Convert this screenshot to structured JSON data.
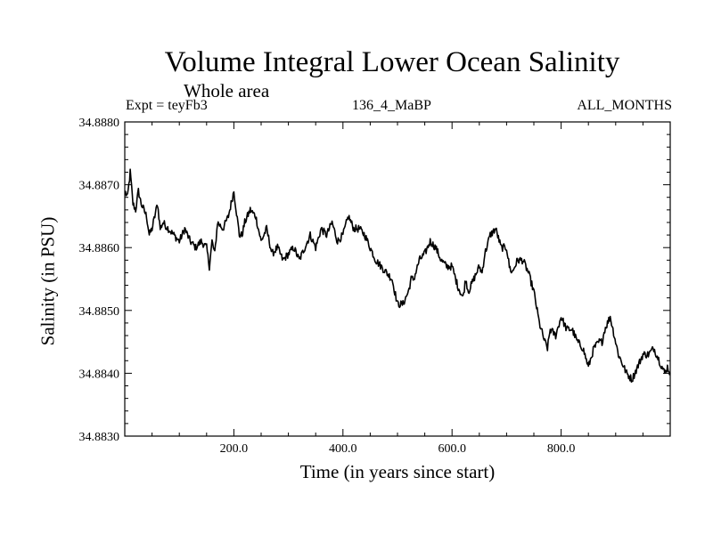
{
  "chart_data": {
    "type": "line",
    "title": "Volume Integral Lower Ocean Salinity",
    "subtitle": "Whole area",
    "experiment_label": "Expt = teyFb3",
    "run_label": "136_4_MaBP",
    "months_label": "ALL_MONTHS",
    "xlabel": "Time (in years since start)",
    "ylabel": "Salinity (in PSU)",
    "xlim": [
      0,
      1000
    ],
    "ylim": [
      34.883,
      34.888
    ],
    "x_ticks": [
      200,
      400,
      600,
      800
    ],
    "x_tick_labels": [
      "200.0",
      "400.0",
      "600.0",
      "800.0"
    ],
    "y_ticks": [
      34.883,
      34.884,
      34.885,
      34.886,
      34.887,
      34.888
    ],
    "y_tick_labels": [
      "34.8830",
      "34.8840",
      "34.8850",
      "34.8860",
      "34.8870",
      "34.8880"
    ],
    "grid": false,
    "series": [
      {
        "name": "salinity",
        "x": [
          0,
          5,
          10,
          15,
          20,
          25,
          30,
          35,
          40,
          45,
          50,
          55,
          60,
          65,
          70,
          80,
          90,
          100,
          110,
          120,
          130,
          140,
          150,
          155,
          160,
          165,
          170,
          180,
          190,
          200,
          210,
          215,
          220,
          230,
          240,
          250,
          260,
          270,
          280,
          290,
          300,
          310,
          320,
          330,
          340,
          350,
          360,
          370,
          380,
          390,
          400,
          410,
          420,
          430,
          440,
          450,
          460,
          470,
          480,
          490,
          500,
          510,
          520,
          525,
          530,
          540,
          550,
          560,
          570,
          580,
          590,
          600,
          610,
          620,
          625,
          630,
          640,
          650,
          655,
          660,
          670,
          680,
          690,
          700,
          705,
          710,
          720,
          730,
          740,
          750,
          760,
          770,
          775,
          780,
          790,
          800,
          810,
          820,
          830,
          840,
          850,
          860,
          870,
          875,
          880,
          890,
          900,
          905,
          910,
          920,
          930,
          940,
          950,
          960,
          970,
          980,
          990,
          995,
          1000
        ],
        "y": [
          34.8869,
          34.8868,
          34.8872,
          34.8867,
          34.8866,
          34.8869,
          34.8867,
          34.8866,
          34.8865,
          34.8862,
          34.8863,
          34.8865,
          34.8867,
          34.8863,
          34.8864,
          34.8863,
          34.8862,
          34.8861,
          34.8863,
          34.8861,
          34.886,
          34.8861,
          34.886,
          34.8857,
          34.8861,
          34.8859,
          34.8864,
          34.8863,
          34.8865,
          34.8869,
          34.8862,
          34.8862,
          34.8864,
          34.8866,
          34.8865,
          34.8861,
          34.8863,
          34.8859,
          34.886,
          34.8858,
          34.8859,
          34.886,
          34.8858,
          34.886,
          34.8862,
          34.886,
          34.8863,
          34.8862,
          34.8864,
          34.8861,
          34.8862,
          34.8865,
          34.8863,
          34.8863,
          34.8862,
          34.886,
          34.8858,
          34.8857,
          34.8856,
          34.8855,
          34.8851,
          34.8851,
          34.8853,
          34.8855,
          34.8855,
          34.8858,
          34.8859,
          34.8861,
          34.886,
          34.8858,
          34.8857,
          34.8857,
          34.8854,
          34.8852,
          34.8855,
          34.8853,
          34.8855,
          34.8857,
          34.8856,
          34.8859,
          34.8862,
          34.8863,
          34.886,
          34.886,
          34.8857,
          34.8856,
          34.8858,
          34.8858,
          34.8856,
          34.8853,
          34.8848,
          34.8845,
          34.8844,
          34.8847,
          34.8846,
          34.8849,
          34.8847,
          34.8847,
          34.8845,
          34.8844,
          34.8841,
          34.8844,
          34.8845,
          34.8845,
          34.8847,
          34.8849,
          34.8845,
          34.8843,
          34.8842,
          34.884,
          34.8839,
          34.8841,
          34.8843,
          34.8843,
          34.8844,
          34.8842,
          34.884,
          34.8841,
          34.884
        ]
      }
    ]
  }
}
